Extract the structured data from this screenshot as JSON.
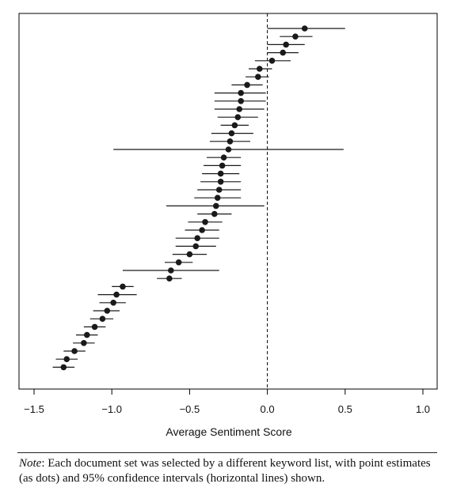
{
  "chart_data": {
    "type": "scatter",
    "subtype": "forest-plot",
    "title": "",
    "xlabel": "Average Sentiment Score",
    "ylabel": "",
    "xlim": [
      -1.5,
      1.0
    ],
    "xticks": [
      "−1.5",
      "−1.0",
      "−0.5",
      "0.0",
      "0.5",
      "1.0"
    ],
    "xtick_values": [
      -1.5,
      -1.0,
      -0.5,
      0.0,
      0.5,
      1.0
    ],
    "reference_line": {
      "x": 0.0,
      "style": "dashed"
    },
    "grid": false,
    "legend": "none",
    "points": [
      {
        "estimate": 0.24,
        "lower": 0.0,
        "upper": 0.5
      },
      {
        "estimate": 0.18,
        "lower": 0.08,
        "upper": 0.29
      },
      {
        "estimate": 0.12,
        "lower": 0.0,
        "upper": 0.24
      },
      {
        "estimate": 0.1,
        "lower": 0.0,
        "upper": 0.2
      },
      {
        "estimate": 0.03,
        "lower": -0.08,
        "upper": 0.15
      },
      {
        "estimate": -0.05,
        "lower": -0.12,
        "upper": 0.03
      },
      {
        "estimate": -0.06,
        "lower": -0.14,
        "upper": 0.01
      },
      {
        "estimate": -0.13,
        "lower": -0.23,
        "upper": -0.03
      },
      {
        "estimate": -0.17,
        "lower": -0.34,
        "upper": -0.01
      },
      {
        "estimate": -0.17,
        "lower": -0.34,
        "upper": -0.01
      },
      {
        "estimate": -0.18,
        "lower": -0.34,
        "upper": -0.02
      },
      {
        "estimate": -0.19,
        "lower": -0.32,
        "upper": -0.06
      },
      {
        "estimate": -0.21,
        "lower": -0.3,
        "upper": -0.12
      },
      {
        "estimate": -0.23,
        "lower": -0.36,
        "upper": -0.09
      },
      {
        "estimate": -0.24,
        "lower": -0.37,
        "upper": -0.11
      },
      {
        "estimate": -0.25,
        "lower": -0.99,
        "upper": 0.49
      },
      {
        "estimate": -0.28,
        "lower": -0.39,
        "upper": -0.17
      },
      {
        "estimate": -0.29,
        "lower": -0.41,
        "upper": -0.17
      },
      {
        "estimate": -0.3,
        "lower": -0.42,
        "upper": -0.18
      },
      {
        "estimate": -0.3,
        "lower": -0.43,
        "upper": -0.17
      },
      {
        "estimate": -0.31,
        "lower": -0.45,
        "upper": -0.17
      },
      {
        "estimate": -0.32,
        "lower": -0.47,
        "upper": -0.17
      },
      {
        "estimate": -0.33,
        "lower": -0.65,
        "upper": -0.02
      },
      {
        "estimate": -0.34,
        "lower": -0.45,
        "upper": -0.23
      },
      {
        "estimate": -0.4,
        "lower": -0.51,
        "upper": -0.29
      },
      {
        "estimate": -0.42,
        "lower": -0.53,
        "upper": -0.31
      },
      {
        "estimate": -0.45,
        "lower": -0.59,
        "upper": -0.31
      },
      {
        "estimate": -0.46,
        "lower": -0.59,
        "upper": -0.33
      },
      {
        "estimate": -0.5,
        "lower": -0.61,
        "upper": -0.39
      },
      {
        "estimate": -0.57,
        "lower": -0.66,
        "upper": -0.48
      },
      {
        "estimate": -0.62,
        "lower": -0.93,
        "upper": -0.31
      },
      {
        "estimate": -0.63,
        "lower": -0.71,
        "upper": -0.55
      },
      {
        "estimate": -0.93,
        "lower": -1.0,
        "upper": -0.86
      },
      {
        "estimate": -0.97,
        "lower": -1.09,
        "upper": -0.84
      },
      {
        "estimate": -0.99,
        "lower": -1.08,
        "upper": -0.91
      },
      {
        "estimate": -1.03,
        "lower": -1.12,
        "upper": -0.95
      },
      {
        "estimate": -1.06,
        "lower": -1.14,
        "upper": -0.99
      },
      {
        "estimate": -1.11,
        "lower": -1.18,
        "upper": -1.04
      },
      {
        "estimate": -1.16,
        "lower": -1.23,
        "upper": -1.09
      },
      {
        "estimate": -1.18,
        "lower": -1.25,
        "upper": -1.11
      },
      {
        "estimate": -1.24,
        "lower": -1.31,
        "upper": -1.17
      },
      {
        "estimate": -1.29,
        "lower": -1.36,
        "upper": -1.22
      },
      {
        "estimate": -1.31,
        "lower": -1.38,
        "upper": -1.24
      }
    ],
    "colors": {
      "points": "#1a1a1a",
      "ci_lines": "#1a1a1a",
      "frame": "#000000"
    }
  },
  "note": {
    "label": "Note",
    "text": ": Each document set was selected by a different keyword list, with point estimates (as dots) and 95% confidence intervals (horizontal lines) shown."
  }
}
